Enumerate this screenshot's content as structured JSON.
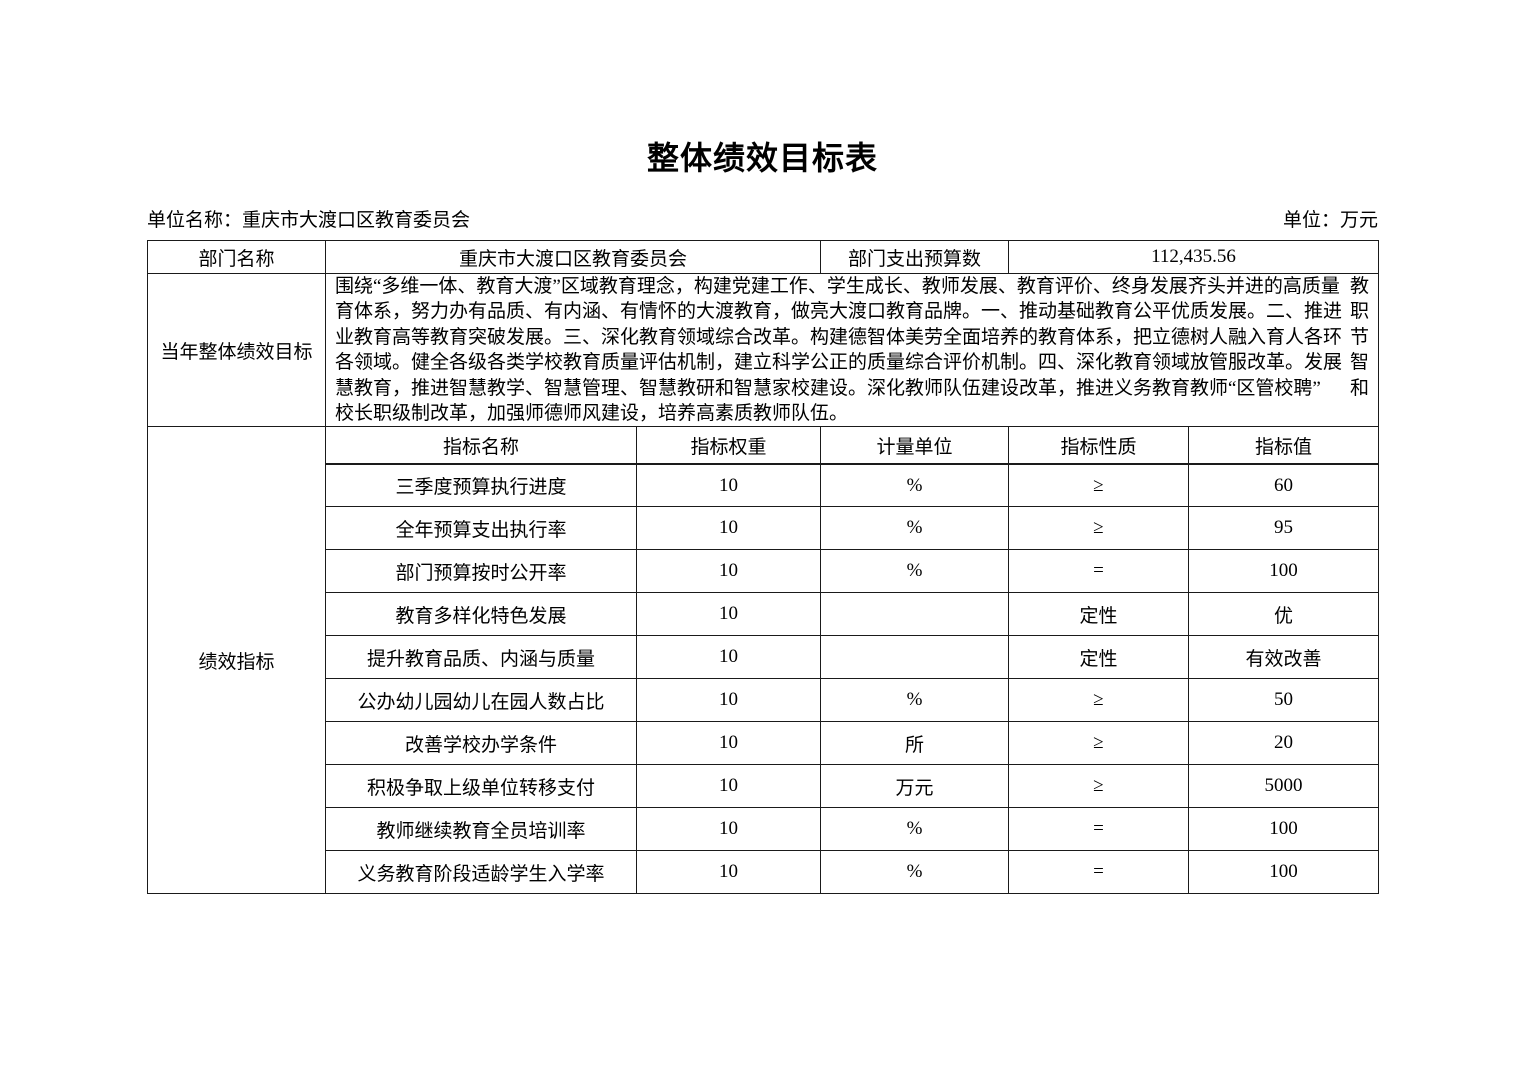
{
  "title": "整体绩效目标表",
  "meta": {
    "left": "单位名称：重庆市大渡口区教育委员会",
    "right": "单位：万元"
  },
  "info": {
    "dept_label": "部门名称",
    "dept_value": "重庆市大渡口区教育委员会",
    "budget_label": "部门支出预算数",
    "budget_value": "112,435.56"
  },
  "goal": {
    "label": "当年整体绩效目标",
    "lines": [
      {
        "text": "围绕“多维一体、教育大渡”区域教育理念，构建党建工作、学生成长、教师发展、教育评价、终身发展齐头并进的高质量",
        "tail": "教"
      },
      {
        "text": "育体系，努力办有品质、有内涵、有情怀的大渡教育，做亮大渡口教育品牌。一、推动基础教育公平优质发展。二、推进",
        "tail": "职"
      },
      {
        "text": "业教育高等教育突破发展。三、深化教育领域综合改革。构建德智体美劳全面培养的教育体系，把立德树人融入育人各环",
        "tail": "节"
      },
      {
        "text": "各领域。健全各级各类学校教育质量评估机制，建立科学公正的质量综合评价机制。四、深化教育领域放管服改革。发展",
        "tail": "智"
      },
      {
        "text": "慧教育，推进智慧教学、智慧管理、智慧教研和智慧家校建设。深化教师队伍建设改革，推进义务教育教师“区管校聘”",
        "tail": "和"
      },
      {
        "text": "校长职级制改革，加强师德师风建设，培养高素质教师队伍。",
        "tail": ""
      }
    ]
  },
  "indicators": {
    "label": "绩效指标",
    "columns": [
      "指标名称",
      "指标权重",
      "计量单位",
      "指标性质",
      "指标值"
    ],
    "rows": [
      {
        "name": "三季度预算执行进度",
        "weight": "10",
        "unit": "%",
        "nature": "≥",
        "value": "60"
      },
      {
        "name": "全年预算支出执行率",
        "weight": "10",
        "unit": "%",
        "nature": "≥",
        "value": "95"
      },
      {
        "name": "部门预算按时公开率",
        "weight": "10",
        "unit": "%",
        "nature": "=",
        "value": "100"
      },
      {
        "name": "教育多样化特色发展",
        "weight": "10",
        "unit": "",
        "nature": "定性",
        "value": "优"
      },
      {
        "name": "提升教育品质、内涵与质量",
        "weight": "10",
        "unit": "",
        "nature": "定性",
        "value": "有效改善"
      },
      {
        "name": "公办幼儿园幼儿在园人数占比",
        "weight": "10",
        "unit": "%",
        "nature": "≥",
        "value": "50"
      },
      {
        "name": "改善学校办学条件",
        "weight": "10",
        "unit": "所",
        "nature": "≥",
        "value": "20"
      },
      {
        "name": "积极争取上级单位转移支付",
        "weight": "10",
        "unit": "万元",
        "nature": "≥",
        "value": "5000"
      },
      {
        "name": "教师继续教育全员培训率",
        "weight": "10",
        "unit": "%",
        "nature": "=",
        "value": "100"
      },
      {
        "name": "义务教育阶段适龄学生入学率",
        "weight": "10",
        "unit": "%",
        "nature": "=",
        "value": "100"
      }
    ]
  }
}
